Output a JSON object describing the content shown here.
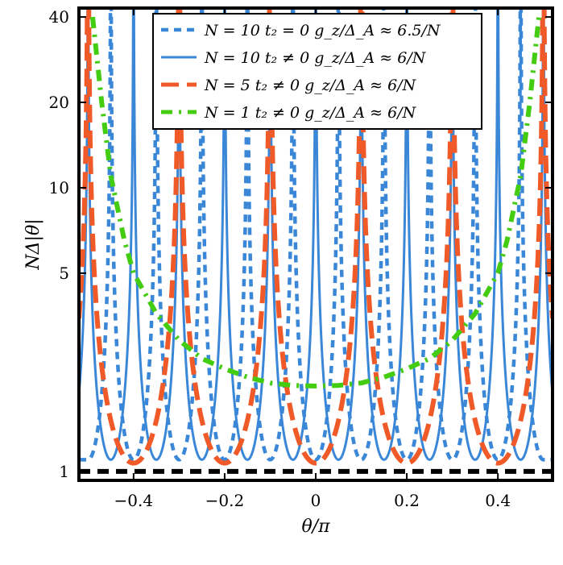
{
  "chart_data": {
    "type": "line",
    "xlabel": "θ/π",
    "ylabel": "NΔ|θ|",
    "xlim": [
      -0.52,
      0.52
    ],
    "ylim": [
      0.93,
      43
    ],
    "y_scale": "log",
    "x_ticks": [
      -0.4,
      -0.2,
      0,
      0.2,
      0.4
    ],
    "x_tick_labels": [
      "−0.4",
      "−0.2",
      "0",
      "0.2",
      "0.4"
    ],
    "y_ticks": [
      1,
      5,
      10,
      20,
      40
    ],
    "y_tick_labels": [
      "1",
      "5",
      "10",
      "20",
      "40"
    ],
    "legend_position": "top-center",
    "series": [
      {
        "name": "N = 10   t₂ = 0   g_z/Δ_A ≈ 6.5/N",
        "color": "#3a87d8",
        "style": "dashed",
        "peaks_x": [
          -0.45,
          -0.35,
          -0.25,
          -0.15,
          -0.05,
          0.05,
          0.15,
          0.25,
          0.35,
          0.45
        ],
        "min_y": 1.1
      },
      {
        "name": "N = 10   t₂ ≠ 0   g_z/Δ_A ≈ 6/N",
        "color": "#3a87d8",
        "style": "solid",
        "peaks_x": [
          -0.5,
          -0.4,
          -0.3,
          -0.2,
          -0.1,
          0,
          0.1,
          0.2,
          0.3,
          0.4,
          0.5
        ],
        "min_y": 1.1
      },
      {
        "name": "N = 5    t₂ ≠ 0   g_z/Δ_A ≈ 6/N",
        "color": "#f05a28",
        "style": "long-dash",
        "peaks_x": [
          -0.5,
          -0.3,
          -0.1,
          0.1,
          0.3,
          0.5
        ],
        "min_y": 1.07
      },
      {
        "name": "N = 1    t₂ ≠ 0   g_z/Δ_A ≈ 6/N",
        "color": "#44cc11",
        "style": "dash-dot",
        "x": [
          -0.49,
          -0.47,
          -0.45,
          -0.42,
          -0.4,
          -0.35,
          -0.3,
          -0.25,
          -0.2,
          -0.15,
          -0.1,
          -0.05,
          0,
          0.05,
          0.1,
          0.15,
          0.2,
          0.25,
          0.3,
          0.35,
          0.4,
          0.42,
          0.45,
          0.47,
          0.49
        ],
        "y": [
          40,
          20,
          11,
          6.5,
          5.0,
          3.6,
          2.9,
          2.5,
          2.3,
          2.15,
          2.05,
          2.01,
          2.0,
          2.01,
          2.05,
          2.15,
          2.3,
          2.5,
          2.9,
          3.6,
          5.0,
          6.5,
          11,
          20,
          40
        ]
      },
      {
        "name": "",
        "color": "#000000",
        "style": "thick-dashed",
        "x": [
          -0.52,
          0.52
        ],
        "y": [
          1.0,
          1.0
        ]
      }
    ]
  }
}
